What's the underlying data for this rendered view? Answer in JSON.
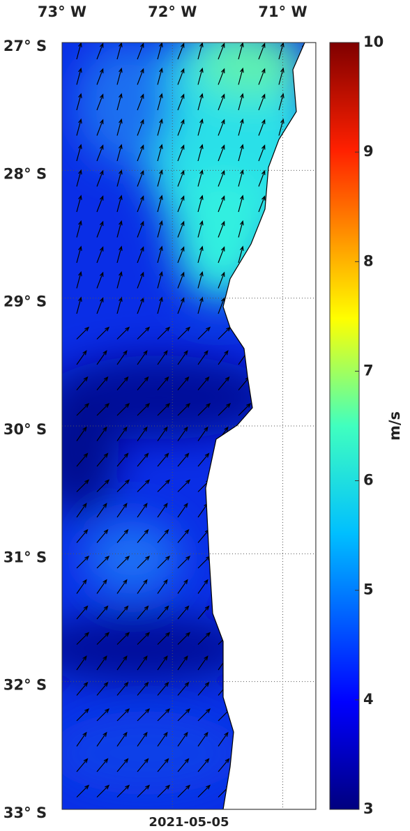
{
  "map": {
    "date": "2021-05-05",
    "lonlim": [
      -73,
      -70.7
    ],
    "latlim": [
      -33,
      -27
    ],
    "lonticks": [
      {
        "value": -73,
        "label": "73° W"
      },
      {
        "value": -72,
        "label": "72° W"
      },
      {
        "value": -71,
        "label": "71° W"
      }
    ],
    "latticks": [
      {
        "value": -27,
        "label": "27° S"
      },
      {
        "value": -28,
        "label": "28° S"
      },
      {
        "value": -29,
        "label": "29° S"
      },
      {
        "value": -30,
        "label": "30° S"
      },
      {
        "value": -31,
        "label": "31° S"
      },
      {
        "value": -32,
        "label": "32° S"
      },
      {
        "value": -33,
        "label": "33° S"
      }
    ],
    "colorbar": {
      "lim": [
        3,
        10
      ],
      "ticks": [
        3,
        4,
        5,
        6,
        7,
        8,
        9,
        10
      ],
      "label": "m/s"
    }
  }
}
